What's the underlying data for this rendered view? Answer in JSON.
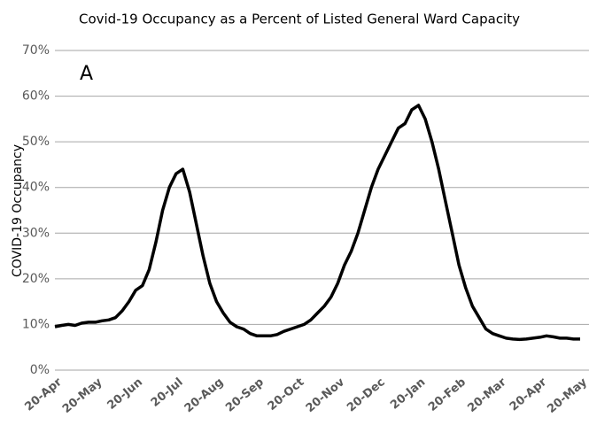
{
  "chart_data": {
    "type": "line",
    "title": "Covid-19 Occupancy as a Percent of Listed General Ward Capacity",
    "annotation": "A",
    "ylabel": "COVID-19 Occupancy",
    "categories": [
      "20-Apr",
      null,
      null,
      null,
      null,
      null,
      "20-May",
      null,
      null,
      null,
      null,
      null,
      "20-Jun",
      null,
      null,
      null,
      null,
      null,
      "20-Jul",
      null,
      null,
      null,
      null,
      null,
      "20-Aug",
      null,
      null,
      null,
      null,
      null,
      "20-Sep",
      null,
      null,
      null,
      null,
      null,
      "20-Oct",
      null,
      null,
      null,
      null,
      null,
      "20-Nov",
      null,
      null,
      null,
      null,
      null,
      "20-Dec",
      null,
      null,
      null,
      null,
      null,
      "20-Jan",
      null,
      null,
      null,
      null,
      null,
      "20-Feb",
      null,
      null,
      null,
      null,
      null,
      "20-Mar",
      null,
      null,
      null,
      null,
      null,
      "20-Apr",
      null,
      null,
      null,
      null,
      null,
      "20-May"
    ],
    "series": [
      {
        "name": "COVID-19 Occupancy",
        "color": "#000000",
        "values": [
          9.5,
          9.8,
          10,
          9.8,
          10.3,
          10.5,
          10.5,
          10.8,
          11,
          11.5,
          13,
          15,
          17.5,
          18.5,
          22,
          28,
          35,
          40,
          43,
          44,
          39,
          32,
          25,
          19,
          15,
          12.5,
          10.5,
          9.5,
          9,
          8,
          7.5,
          7.5,
          7.5,
          7.8,
          8.5,
          9,
          9.5,
          10,
          11,
          12.5,
          14,
          16,
          19,
          23,
          26,
          30,
          35,
          40,
          44,
          47,
          50,
          53,
          54,
          57,
          58,
          55,
          50,
          44,
          37,
          30,
          23,
          18,
          14,
          11.5,
          9,
          8,
          7.5,
          7,
          6.8,
          6.7,
          6.8,
          7,
          7.2,
          7.5,
          7.3,
          7,
          7,
          6.8,
          6.8
        ]
      }
    ],
    "ylim": [
      0,
      70
    ],
    "yticks": [
      {
        "value": 0,
        "label": "0%"
      },
      {
        "value": 10,
        "label": "10%"
      },
      {
        "value": 20,
        "label": "20%"
      },
      {
        "value": 30,
        "label": "30%"
      },
      {
        "value": 40,
        "label": "40%"
      },
      {
        "value": 50,
        "label": "50%"
      },
      {
        "value": 60,
        "label": "60%"
      },
      {
        "value": 70,
        "label": "70%"
      }
    ],
    "grid": true
  }
}
